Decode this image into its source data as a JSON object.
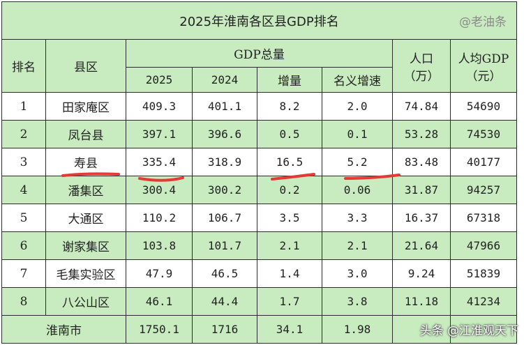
{
  "title": "2025年淮南各区县GDP排名",
  "watermark": "@老油条",
  "footer_watermark": "头条 @江淮观天下",
  "headers": {
    "rank": "排名",
    "county": "县区",
    "gdp_total": "GDP总量",
    "y2025": "2025",
    "y2024": "2024",
    "increment": "增量",
    "nominal_growth": "名义增速",
    "population": "人口",
    "population_unit": "（万）",
    "per_capita": "人均GDP",
    "per_capita_unit": "（元）"
  },
  "rows": [
    {
      "rank": "1",
      "name": "田家庵区",
      "gdp2025": "409.3",
      "gdp2024": "401.1",
      "inc": "8.2",
      "growth": "2.0",
      "pop": "74.84",
      "pcgdp": "54690"
    },
    {
      "rank": "2",
      "name": "凤台县",
      "gdp2025": "397.1",
      "gdp2024": "396.6",
      "inc": "0.5",
      "growth": "0.1",
      "pop": "53.28",
      "pcgdp": "74530"
    },
    {
      "rank": "3",
      "name": "寿县",
      "gdp2025": "335.4",
      "gdp2024": "318.9",
      "inc": "16.5",
      "growth": "5.2",
      "pop": "83.48",
      "pcgdp": "40177"
    },
    {
      "rank": "4",
      "name": "潘集区",
      "gdp2025": "300.4",
      "gdp2024": "300.2",
      "inc": "0.2",
      "growth": "0.06",
      "pop": "31.87",
      "pcgdp": "94257"
    },
    {
      "rank": "5",
      "name": "大通区",
      "gdp2025": "110.2",
      "gdp2024": "106.7",
      "inc": "3.5",
      "growth": "3.3",
      "pop": "16.37",
      "pcgdp": "67318"
    },
    {
      "rank": "6",
      "name": "谢家集区",
      "gdp2025": "103.8",
      "gdp2024": "101.7",
      "inc": "2.1",
      "growth": "2.1",
      "pop": "21.64",
      "pcgdp": "47966"
    },
    {
      "rank": "7",
      "name": "毛集实验区",
      "gdp2025": "47.9",
      "gdp2024": "46.5",
      "inc": "1.4",
      "growth": "3.0",
      "pop": "9.24",
      "pcgdp": "51839"
    },
    {
      "rank": "8",
      "name": "八公山区",
      "gdp2025": "46.1",
      "gdp2024": "44.4",
      "inc": "1.7",
      "growth": "3.8",
      "pop": "11.18",
      "pcgdp": "41234"
    }
  ],
  "total": {
    "name": "淮南市",
    "gdp2025": "1750.1",
    "gdp2024": "1716",
    "inc": "34.1",
    "growth": "1.98"
  },
  "colors": {
    "header_bg": "#c8ebc0",
    "annotation": "#e53935"
  }
}
